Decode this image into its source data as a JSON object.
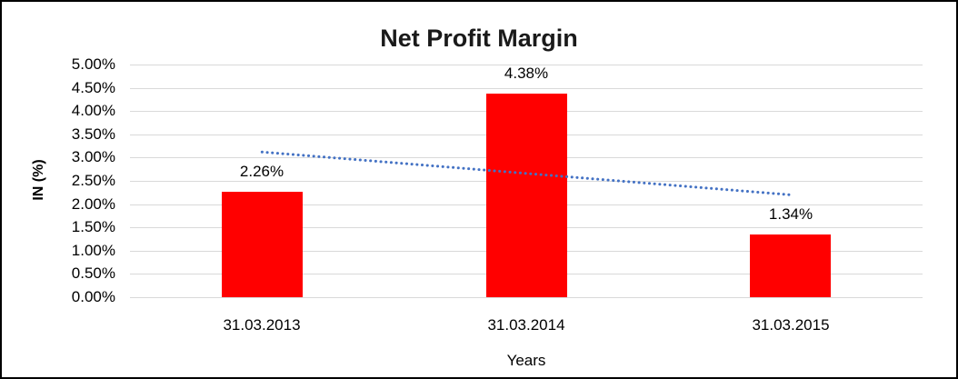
{
  "chart_data": {
    "type": "bar",
    "title": "Net Profit Margin",
    "categories": [
      "31.03.2013",
      "31.03.2014",
      "31.03.2015"
    ],
    "values": [
      2.26,
      4.38,
      1.34
    ],
    "data_labels": [
      "2.26%",
      "4.38%",
      "1.34%"
    ],
    "xlabel": "Years",
    "ylabel": "IN (%)",
    "ylim": [
      0,
      5
    ],
    "ytick_step": 0.5,
    "ytick_labels": [
      "0.00%",
      "0.50%",
      "1.00%",
      "1.50%",
      "2.00%",
      "2.50%",
      "3.00%",
      "3.50%",
      "4.00%",
      "4.50%",
      "5.00%"
    ],
    "grid": true,
    "legend": "none",
    "bar_color": "#FF0000",
    "trendline": {
      "type": "linear",
      "style": "dotted",
      "color": "#4472C4",
      "start_value": 3.12,
      "end_value": 2.2
    }
  },
  "colors": {
    "background": "#FFFFFF",
    "frame_border": "#000000",
    "gridline": "#D9D9D9",
    "text": "#000000",
    "title_text": "#1A1A1A"
  }
}
